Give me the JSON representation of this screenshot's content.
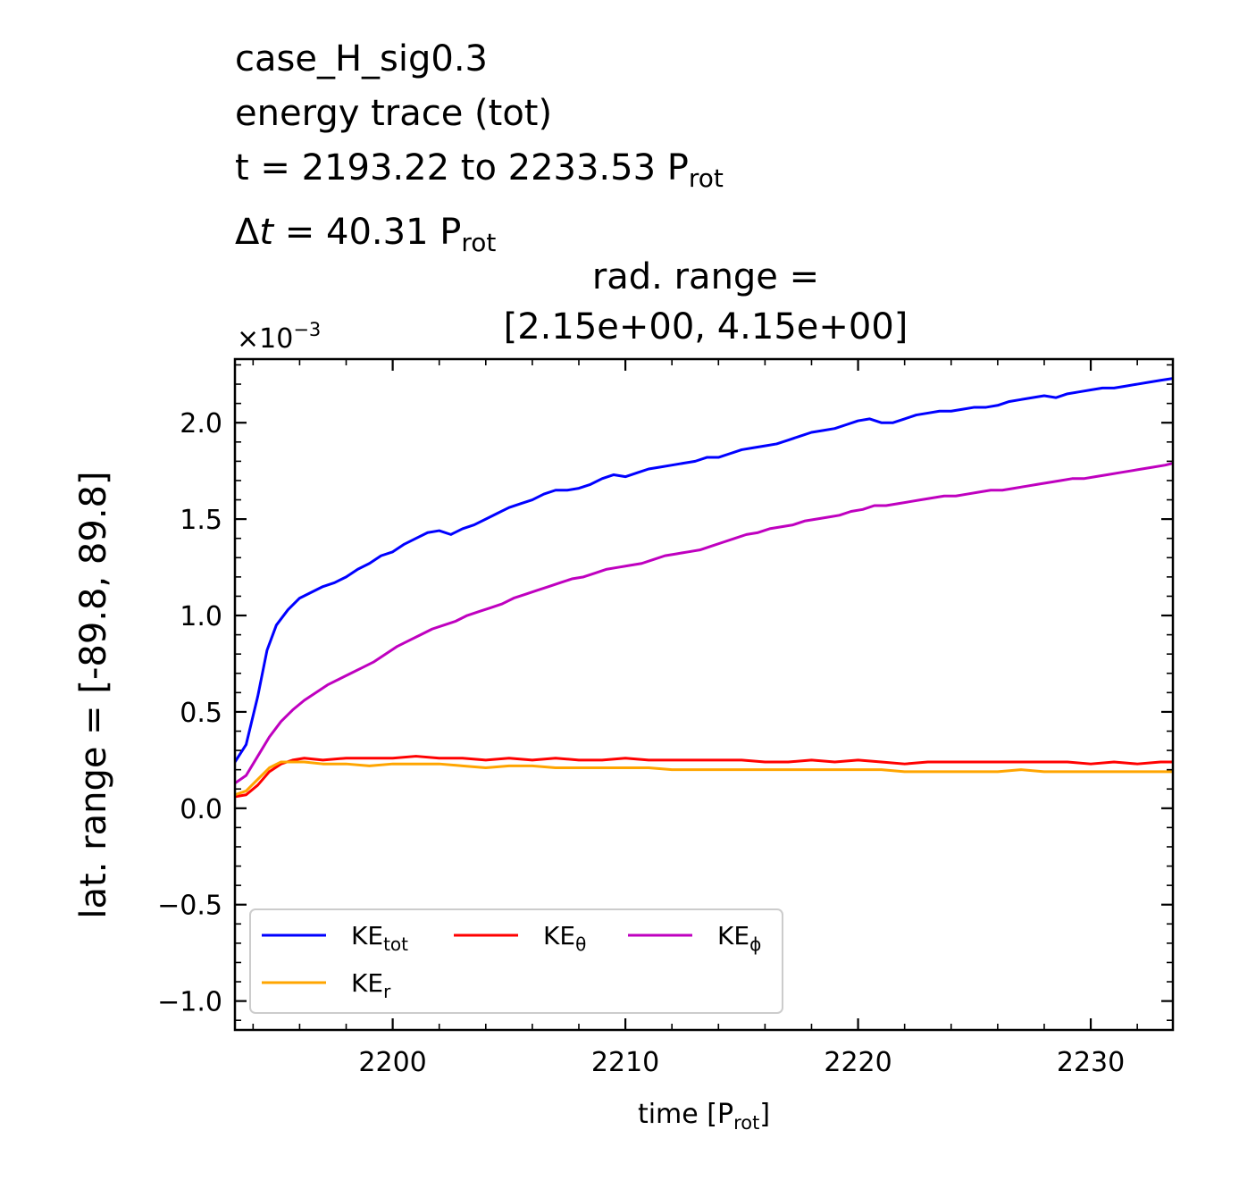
{
  "figure_title": {
    "line1": "case_H_sig0.3",
    "line2": "energy trace (tot)",
    "line3_prefix": "t = 2193.22 to 2233.53 P",
    "line3_sub": "rot",
    "line4_delta": "Δ",
    "line4_t": "t",
    "line4_rest": " = 40.31 P",
    "line4_sub": "rot"
  },
  "chart_data": {
    "type": "line",
    "title_line1": "rad. range =",
    "title_line2": "[2.15e+00, 4.15e+00]",
    "xlabel_main": "time [P",
    "xlabel_sub": "rot",
    "xlabel_end": "]",
    "ylabel": "lat. range = [-89.8, 89.8]",
    "offset_text_base": "×10",
    "offset_text_exp": "−3",
    "xlim": [
      2193.22,
      2233.53
    ],
    "ylim": [
      -1.15,
      2.33
    ],
    "y_scale_factor": 0.001,
    "xticks": [
      2200,
      2210,
      2220,
      2230
    ],
    "xtick_labels": [
      "2200",
      "2210",
      "2220",
      "2230"
    ],
    "yticks": [
      -1.0,
      -0.5,
      0.0,
      0.5,
      1.0,
      1.5,
      2.0
    ],
    "ytick_labels": [
      "−1.0",
      "−0.5",
      "0.0",
      "0.5",
      "1.0",
      "1.5",
      "2.0"
    ],
    "grid": false,
    "legend_position": "lower-left",
    "series": [
      {
        "name": "KE",
        "name_sub": "tot",
        "color": "#0000ff",
        "x": [
          2193.22,
          2193.7,
          2194.2,
          2194.6,
          2195.0,
          2195.5,
          2196.0,
          2196.5,
          2197.0,
          2197.5,
          2198.0,
          2198.5,
          2199.0,
          2199.5,
          2200.0,
          2200.5,
          2201.0,
          2201.5,
          2202.0,
          2202.5,
          2203.0,
          2203.5,
          2204.0,
          2204.5,
          2205.0,
          2205.5,
          2206.0,
          2206.5,
          2207.0,
          2207.5,
          2208.0,
          2208.5,
          2209.0,
          2209.5,
          2210.0,
          2210.5,
          2211.0,
          2211.5,
          2212.0,
          2212.5,
          2213.0,
          2213.5,
          2214.0,
          2214.5,
          2215.0,
          2215.5,
          2216.0,
          2216.5,
          2217.0,
          2217.5,
          2218.0,
          2218.5,
          2219.0,
          2219.5,
          2220.0,
          2220.5,
          2221.0,
          2221.5,
          2222.0,
          2222.5,
          2223.0,
          2223.5,
          2224.0,
          2224.5,
          2225.0,
          2225.5,
          2226.0,
          2226.5,
          2227.0,
          2227.5,
          2228.0,
          2228.5,
          2229.0,
          2229.5,
          2230.0,
          2230.5,
          2231.0,
          2231.5,
          2232.0,
          2232.5,
          2233.0,
          2233.53
        ],
        "y": [
          0.24,
          0.33,
          0.58,
          0.82,
          0.95,
          1.03,
          1.09,
          1.12,
          1.15,
          1.17,
          1.2,
          1.24,
          1.27,
          1.31,
          1.33,
          1.37,
          1.4,
          1.43,
          1.44,
          1.42,
          1.45,
          1.47,
          1.5,
          1.53,
          1.56,
          1.58,
          1.6,
          1.63,
          1.65,
          1.65,
          1.66,
          1.68,
          1.71,
          1.73,
          1.72,
          1.74,
          1.76,
          1.77,
          1.78,
          1.79,
          1.8,
          1.82,
          1.82,
          1.84,
          1.86,
          1.87,
          1.88,
          1.89,
          1.91,
          1.93,
          1.95,
          1.96,
          1.97,
          1.99,
          2.01,
          2.02,
          2.0,
          2.0,
          2.02,
          2.04,
          2.05,
          2.06,
          2.06,
          2.07,
          2.08,
          2.08,
          2.09,
          2.11,
          2.12,
          2.13,
          2.14,
          2.13,
          2.15,
          2.16,
          2.17,
          2.18,
          2.18,
          2.19,
          2.2,
          2.21,
          2.22,
          2.23
        ]
      },
      {
        "name": "KE",
        "name_sub": "θ",
        "color": "#ff0000",
        "x": [
          2193.22,
          2193.7,
          2194.2,
          2194.7,
          2195.2,
          2195.7,
          2196.2,
          2197.0,
          2198.0,
          2199.0,
          2200.0,
          2201.0,
          2202.0,
          2203.0,
          2204.0,
          2205.0,
          2206.0,
          2207.0,
          2208.0,
          2209.0,
          2210.0,
          2211.0,
          2212.0,
          2213.0,
          2214.0,
          2215.0,
          2216.0,
          2217.0,
          2218.0,
          2219.0,
          2220.0,
          2221.0,
          2222.0,
          2223.0,
          2224.0,
          2225.0,
          2226.0,
          2227.0,
          2228.0,
          2229.0,
          2230.0,
          2231.0,
          2232.0,
          2233.0,
          2233.53
        ],
        "y": [
          0.06,
          0.07,
          0.12,
          0.19,
          0.23,
          0.25,
          0.26,
          0.25,
          0.26,
          0.26,
          0.26,
          0.27,
          0.26,
          0.26,
          0.25,
          0.26,
          0.25,
          0.26,
          0.25,
          0.25,
          0.26,
          0.25,
          0.25,
          0.25,
          0.25,
          0.25,
          0.24,
          0.24,
          0.25,
          0.24,
          0.25,
          0.24,
          0.23,
          0.24,
          0.24,
          0.24,
          0.24,
          0.24,
          0.24,
          0.24,
          0.23,
          0.24,
          0.23,
          0.24,
          0.24
        ]
      },
      {
        "name": "KE",
        "name_sub": "ϕ",
        "color": "#bf00bf",
        "x": [
          2193.22,
          2193.7,
          2194.2,
          2194.7,
          2195.2,
          2195.7,
          2196.2,
          2196.7,
          2197.2,
          2197.7,
          2198.2,
          2198.7,
          2199.2,
          2199.7,
          2200.2,
          2200.7,
          2201.2,
          2201.7,
          2202.2,
          2202.7,
          2203.2,
          2203.7,
          2204.2,
          2204.7,
          2205.2,
          2205.7,
          2206.2,
          2206.7,
          2207.2,
          2207.7,
          2208.2,
          2208.7,
          2209.2,
          2209.7,
          2210.2,
          2210.7,
          2211.2,
          2211.7,
          2212.2,
          2212.7,
          2213.2,
          2213.7,
          2214.2,
          2214.7,
          2215.2,
          2215.7,
          2216.2,
          2216.7,
          2217.2,
          2217.7,
          2218.2,
          2218.7,
          2219.2,
          2219.7,
          2220.2,
          2220.7,
          2221.2,
          2221.7,
          2222.2,
          2222.7,
          2223.2,
          2223.7,
          2224.2,
          2224.7,
          2225.2,
          2225.7,
          2226.2,
          2226.7,
          2227.2,
          2227.7,
          2228.2,
          2228.7,
          2229.2,
          2229.7,
          2230.2,
          2230.7,
          2231.2,
          2231.7,
          2232.2,
          2232.7,
          2233.2,
          2233.53
        ],
        "y": [
          0.13,
          0.17,
          0.27,
          0.37,
          0.45,
          0.51,
          0.56,
          0.6,
          0.64,
          0.67,
          0.7,
          0.73,
          0.76,
          0.8,
          0.84,
          0.87,
          0.9,
          0.93,
          0.95,
          0.97,
          1.0,
          1.02,
          1.04,
          1.06,
          1.09,
          1.11,
          1.13,
          1.15,
          1.17,
          1.19,
          1.2,
          1.22,
          1.24,
          1.25,
          1.26,
          1.27,
          1.29,
          1.31,
          1.32,
          1.33,
          1.34,
          1.36,
          1.38,
          1.4,
          1.42,
          1.43,
          1.45,
          1.46,
          1.47,
          1.49,
          1.5,
          1.51,
          1.52,
          1.54,
          1.55,
          1.57,
          1.57,
          1.58,
          1.59,
          1.6,
          1.61,
          1.62,
          1.62,
          1.63,
          1.64,
          1.65,
          1.65,
          1.66,
          1.67,
          1.68,
          1.69,
          1.7,
          1.71,
          1.71,
          1.72,
          1.73,
          1.74,
          1.75,
          1.76,
          1.77,
          1.78,
          1.79
        ]
      },
      {
        "name": "KE",
        "name_sub": "r",
        "color": "#ffa500",
        "x": [
          2193.22,
          2193.7,
          2194.2,
          2194.7,
          2195.2,
          2195.7,
          2196.2,
          2197.0,
          2198.0,
          2199.0,
          2200.0,
          2201.0,
          2202.0,
          2203.0,
          2204.0,
          2205.0,
          2206.0,
          2207.0,
          2208.0,
          2209.0,
          2210.0,
          2211.0,
          2212.0,
          2213.0,
          2214.0,
          2215.0,
          2216.0,
          2217.0,
          2218.0,
          2219.0,
          2220.0,
          2221.0,
          2222.0,
          2223.0,
          2224.0,
          2225.0,
          2226.0,
          2227.0,
          2228.0,
          2229.0,
          2230.0,
          2231.0,
          2232.0,
          2233.0,
          2233.53
        ],
        "y": [
          0.07,
          0.09,
          0.15,
          0.21,
          0.24,
          0.24,
          0.24,
          0.23,
          0.23,
          0.22,
          0.23,
          0.23,
          0.23,
          0.22,
          0.21,
          0.22,
          0.22,
          0.21,
          0.21,
          0.21,
          0.21,
          0.21,
          0.2,
          0.2,
          0.2,
          0.2,
          0.2,
          0.2,
          0.2,
          0.2,
          0.2,
          0.2,
          0.19,
          0.19,
          0.19,
          0.19,
          0.19,
          0.2,
          0.19,
          0.19,
          0.19,
          0.19,
          0.19,
          0.19,
          0.19
        ]
      }
    ]
  }
}
